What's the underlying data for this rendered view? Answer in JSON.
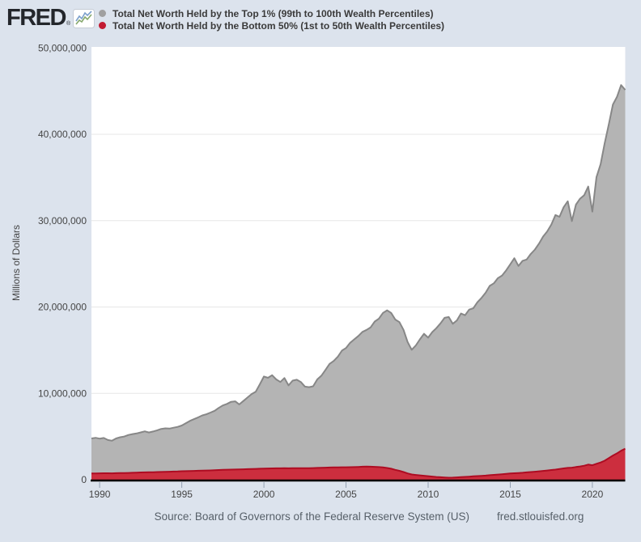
{
  "header": {
    "logo_text": "FRED",
    "registered_mark": "®"
  },
  "footer": {
    "source": "Source: Board of Governors of the Federal Reserve System (US)",
    "site": "fred.stlouisfed.org"
  },
  "colors": {
    "page_background": "#dce3ed",
    "plot_background": "#ffffff",
    "gridline": "#e7e7e7",
    "axis_line": "#000000",
    "tick": "#94a2b3",
    "tick_label": "#454545",
    "top1_fill": "#b4b4b4",
    "top1_line": "#878787",
    "top1_legend_dot": "#a0a0a0",
    "bottom50_fill": "#cc2e3e",
    "bottom50_line": "#ae0c22",
    "bottom50_legend_dot": "#c21b32"
  },
  "chart_data": {
    "type": "area",
    "title": "",
    "xlabel": "",
    "ylabel": "Millions of Dollars",
    "value_unit": "millions of dollars",
    "x_unit": "year (quarterly observations)",
    "ylim": [
      0,
      50000000
    ],
    "y_ticks": [
      0,
      10000000,
      20000000,
      30000000,
      40000000,
      50000000
    ],
    "y_tick_labels": [
      "0",
      "10,000,000",
      "20,000,000",
      "30,000,000",
      "40,000,000",
      "50,000,000"
    ],
    "x_ticks": [
      1990,
      1995,
      2000,
      2005,
      2010,
      2015,
      2020
    ],
    "x_range": [
      1989.5,
      2022.0
    ],
    "x_start": 1989.5,
    "x_step": 0.25,
    "grid": true,
    "legend_position": "top",
    "series": [
      {
        "name": "Total Net Worth Held by the Top 1% (99th to 100th Wealth Percentiles)",
        "fill": "#b4b4b4",
        "line": "#878787",
        "dot": "#a0a0a0",
        "values": [
          4780000.0,
          4850000.0,
          4760000.0,
          4830000.0,
          4600000.0,
          4520000.0,
          4780000.0,
          4920000.0,
          5000000.0,
          5180000.0,
          5280000.0,
          5360000.0,
          5480000.0,
          5600000.0,
          5470000.0,
          5580000.0,
          5720000.0,
          5880000.0,
          5950000.0,
          5920000.0,
          6020000.0,
          6120000.0,
          6280000.0,
          6550000.0,
          6820000.0,
          7020000.0,
          7220000.0,
          7450000.0,
          7580000.0,
          7780000.0,
          7980000.0,
          8320000.0,
          8600000.0,
          8780000.0,
          9020000.0,
          9080000.0,
          8720000.0,
          9120000.0,
          9520000.0,
          9920000.0,
          10180000.0,
          11050000.0,
          11950000.0,
          11800000.0,
          12100000.0,
          11620000.0,
          11320000.0,
          11780000.0,
          10920000.0,
          11480000.0,
          11580000.0,
          11320000.0,
          10780000.0,
          10720000.0,
          10820000.0,
          11620000.0,
          12050000.0,
          12720000.0,
          13420000.0,
          13750000.0,
          14250000.0,
          14950000.0,
          15250000.0,
          15850000.0,
          16250000.0,
          16650000.0,
          17120000.0,
          17350000.0,
          17650000.0,
          18320000.0,
          18650000.0,
          19320000.0,
          19620000.0,
          19320000.0,
          18550000.0,
          18250000.0,
          17350000.0,
          15950000.0,
          15050000.0,
          15550000.0,
          16250000.0,
          16900000.0,
          16450000.0,
          17100000.0,
          17550000.0,
          18100000.0,
          18750000.0,
          18850000.0,
          18050000.0,
          18450000.0,
          19250000.0,
          19050000.0,
          19700000.0,
          19850000.0,
          20550000.0,
          21050000.0,
          21650000.0,
          22450000.0,
          22750000.0,
          23350000.0,
          23650000.0,
          24250000.0,
          24950000.0,
          25650000.0,
          24750000.0,
          25350000.0,
          25500000.0,
          26150000.0,
          26650000.0,
          27350000.0,
          28150000.0,
          28750000.0,
          29550000.0,
          30650000.0,
          30450000.0,
          31550000.0,
          32250000.0,
          29950000.0,
          31850000.0,
          32550000.0,
          32950000.0,
          33950000.0,
          31050000.0,
          35050000.0,
          36550000.0,
          38950000.0,
          41150000.0,
          43450000.0,
          44350000.0,
          45700000.0,
          45150000.0
        ]
      },
      {
        "name": "Total Net Worth Held by the Bottom 50% (1st to 50th Wealth Percentiles)",
        "fill": "#cc2e3e",
        "line": "#ae0c22",
        "dot": "#c21b32",
        "values": [
          720000.0,
          730000.0,
          740000.0,
          750000.0,
          750000.0,
          740000.0,
          760000.0,
          770000.0,
          780000.0,
          790000.0,
          810000.0,
          820000.0,
          840000.0,
          850000.0,
          860000.0,
          870000.0,
          890000.0,
          900000.0,
          920000.0,
          930000.0,
          950000.0,
          960000.0,
          980000.0,
          990000.0,
          1010000.0,
          1020000.0,
          1040000.0,
          1050000.0,
          1070000.0,
          1080000.0,
          1100000.0,
          1120000.0,
          1140000.0,
          1160000.0,
          1170000.0,
          1180000.0,
          1200000.0,
          1210000.0,
          1230000.0,
          1240000.0,
          1260000.0,
          1270000.0,
          1290000.0,
          1300000.0,
          1310000.0,
          1320000.0,
          1320000.0,
          1330000.0,
          1320000.0,
          1330000.0,
          1340000.0,
          1340000.0,
          1330000.0,
          1340000.0,
          1350000.0,
          1370000.0,
          1390000.0,
          1400000.0,
          1410000.0,
          1420000.0,
          1430000.0,
          1440000.0,
          1440000.0,
          1450000.0,
          1460000.0,
          1480000.0,
          1510000.0,
          1530000.0,
          1510000.0,
          1490000.0,
          1460000.0,
          1420000.0,
          1360000.0,
          1270000.0,
          1140000.0,
          1030000.0,
          890000.0,
          730000.0,
          610000.0,
          550000.0,
          510000.0,
          460000.0,
          410000.0,
          370000.0,
          320000.0,
          290000.0,
          260000.0,
          230000.0,
          240000.0,
          270000.0,
          300000.0,
          330000.0,
          360000.0,
          390000.0,
          420000.0,
          450000.0,
          480000.0,
          520000.0,
          560000.0,
          600000.0,
          640000.0,
          680000.0,
          720000.0,
          750000.0,
          780000.0,
          810000.0,
          850000.0,
          890000.0,
          930000.0,
          970000.0,
          1020000.0,
          1070000.0,
          1120000.0,
          1170000.0,
          1240000.0,
          1310000.0,
          1370000.0,
          1400000.0,
          1470000.0,
          1540000.0,
          1620000.0,
          1750000.0,
          1680000.0,
          1850000.0,
          2000000.0,
          2200000.0,
          2500000.0,
          2800000.0,
          3050000.0,
          3350000.0,
          3600000.0
        ]
      }
    ]
  }
}
